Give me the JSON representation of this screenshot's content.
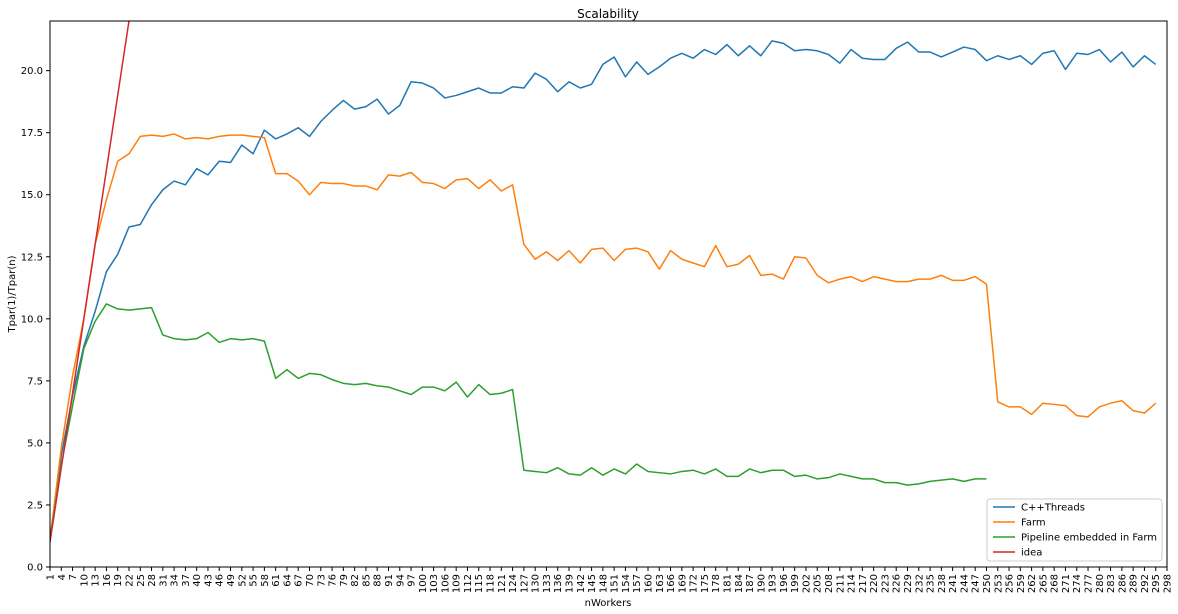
{
  "chart_data": {
    "type": "line",
    "title": "Scalability",
    "xlabel": "nWorkers",
    "ylabel": "Tpar(1)/Tpar(n)",
    "ylim": [
      0,
      22
    ],
    "yticks": [
      "0.0",
      "2.5",
      "5.0",
      "7.5",
      "10.0",
      "12.5",
      "15.0",
      "17.5",
      "20.0"
    ],
    "ytick_values": [
      0,
      2.5,
      5,
      7.5,
      10,
      12.5,
      15,
      17.5,
      20
    ],
    "x_start": 1,
    "x_end": 298,
    "xticks": [
      1,
      4,
      7,
      10,
      13,
      16,
      19,
      22,
      25,
      28,
      31,
      34,
      37,
      40,
      43,
      46,
      49,
      52,
      55,
      58,
      61,
      64,
      67,
      70,
      73,
      76,
      79,
      82,
      85,
      88,
      91,
      94,
      97,
      100,
      103,
      106,
      109,
      112,
      115,
      118,
      121,
      124,
      127,
      130,
      133,
      136,
      139,
      142,
      145,
      148,
      151,
      154,
      157,
      160,
      163,
      166,
      169,
      172,
      175,
      178,
      181,
      184,
      187,
      190,
      193,
      196,
      199,
      202,
      205,
      208,
      211,
      214,
      217,
      220,
      223,
      226,
      229,
      232,
      235,
      238,
      241,
      244,
      247,
      250,
      253,
      256,
      259,
      262,
      265,
      268,
      271,
      274,
      277,
      280,
      283,
      286,
      289,
      292,
      295,
      298
    ],
    "legend_position": "lower-right",
    "series": [
      {
        "name": "C++Threads",
        "color": "#1f77b4",
        "values": [
          1.1,
          4.5,
          6.9,
          8.9,
          10.3,
          11.9,
          12.6,
          13.7,
          13.8,
          14.6,
          15.2,
          15.55,
          15.4,
          16.05,
          15.8,
          16.35,
          16.3,
          17.0,
          16.65,
          17.6,
          17.25,
          17.45,
          17.7,
          17.35,
          17.95,
          18.4,
          18.8,
          18.45,
          18.55,
          18.85,
          18.25,
          18.6,
          19.55,
          19.5,
          19.3,
          18.9,
          19.0,
          19.15,
          19.3,
          19.1,
          19.1,
          19.35,
          19.3,
          19.9,
          19.65,
          19.15,
          19.55,
          19.3,
          19.45,
          20.25,
          20.55,
          19.75,
          20.35,
          19.85,
          20.15,
          20.5,
          20.7,
          20.5,
          20.85,
          20.65,
          21.05,
          20.6,
          21.0,
          20.6,
          21.2,
          21.1,
          20.8,
          20.85,
          20.8,
          20.65,
          20.3,
          20.85,
          20.5,
          20.45,
          20.45,
          20.9,
          21.15,
          20.75,
          20.75,
          20.55,
          20.75,
          20.95,
          20.85,
          20.4,
          20.6,
          20.45,
          20.6,
          20.25,
          20.7,
          20.8,
          20.05,
          20.7,
          20.65,
          20.85,
          20.35,
          20.75,
          20.15,
          20.6,
          20.25
        ]
      },
      {
        "name": "Farm",
        "color": "#ff7f0e",
        "values": [
          1.1,
          4.8,
          7.7,
          10.0,
          13.0,
          14.8,
          16.35,
          16.65,
          17.35,
          17.4,
          17.35,
          17.45,
          17.25,
          17.3,
          17.25,
          17.35,
          17.4,
          17.4,
          17.35,
          17.3,
          15.85,
          15.85,
          15.55,
          15.0,
          15.5,
          15.45,
          15.45,
          15.35,
          15.35,
          15.2,
          15.8,
          15.75,
          15.9,
          15.5,
          15.45,
          15.25,
          15.6,
          15.65,
          15.25,
          15.6,
          15.15,
          15.4,
          13.0,
          12.4,
          12.7,
          12.35,
          12.75,
          12.25,
          12.8,
          12.85,
          12.35,
          12.8,
          12.85,
          12.7,
          12.0,
          12.75,
          12.4,
          12.25,
          12.1,
          12.95,
          12.1,
          12.2,
          12.55,
          11.75,
          11.8,
          11.6,
          12.5,
          12.45,
          11.75,
          11.45,
          11.6,
          11.7,
          11.5,
          11.7,
          11.6,
          11.5,
          11.5,
          11.6,
          11.6,
          11.75,
          11.55,
          11.55,
          11.7,
          11.4,
          6.65,
          6.45,
          6.45,
          6.15,
          6.6,
          6.55,
          6.5,
          6.1,
          6.05,
          6.45,
          6.6,
          6.7,
          6.3,
          6.2,
          6.6
        ]
      },
      {
        "name": "Pipeline embedded in Farm",
        "color": "#2ca02c",
        "values": [
          1.1,
          4.1,
          6.5,
          8.8,
          9.9,
          10.6,
          10.4,
          10.35,
          10.4,
          10.45,
          9.35,
          9.2,
          9.15,
          9.2,
          9.45,
          9.05,
          9.2,
          9.15,
          9.2,
          9.1,
          7.6,
          7.95,
          7.6,
          7.8,
          7.75,
          7.55,
          7.4,
          7.35,
          7.4,
          7.3,
          7.25,
          7.1,
          6.95,
          7.25,
          7.25,
          7.1,
          7.45,
          6.85,
          7.35,
          6.95,
          7.0,
          7.15,
          3.9,
          3.85,
          3.8,
          4.0,
          3.75,
          3.7,
          4.0,
          3.7,
          3.95,
          3.75,
          4.15,
          3.85,
          3.8,
          3.75,
          3.85,
          3.9,
          3.75,
          3.95,
          3.65,
          3.65,
          3.95,
          3.8,
          3.9,
          3.9,
          3.65,
          3.7,
          3.55,
          3.6,
          3.75,
          3.65,
          3.55,
          3.55,
          3.4,
          3.4,
          3.3,
          3.35,
          3.45,
          3.5,
          3.55,
          3.45,
          3.55,
          3.55
        ]
      },
      {
        "name": "idea",
        "color": "#d62728",
        "x": [
          1,
          25
        ],
        "values": [
          1,
          25
        ]
      }
    ]
  }
}
